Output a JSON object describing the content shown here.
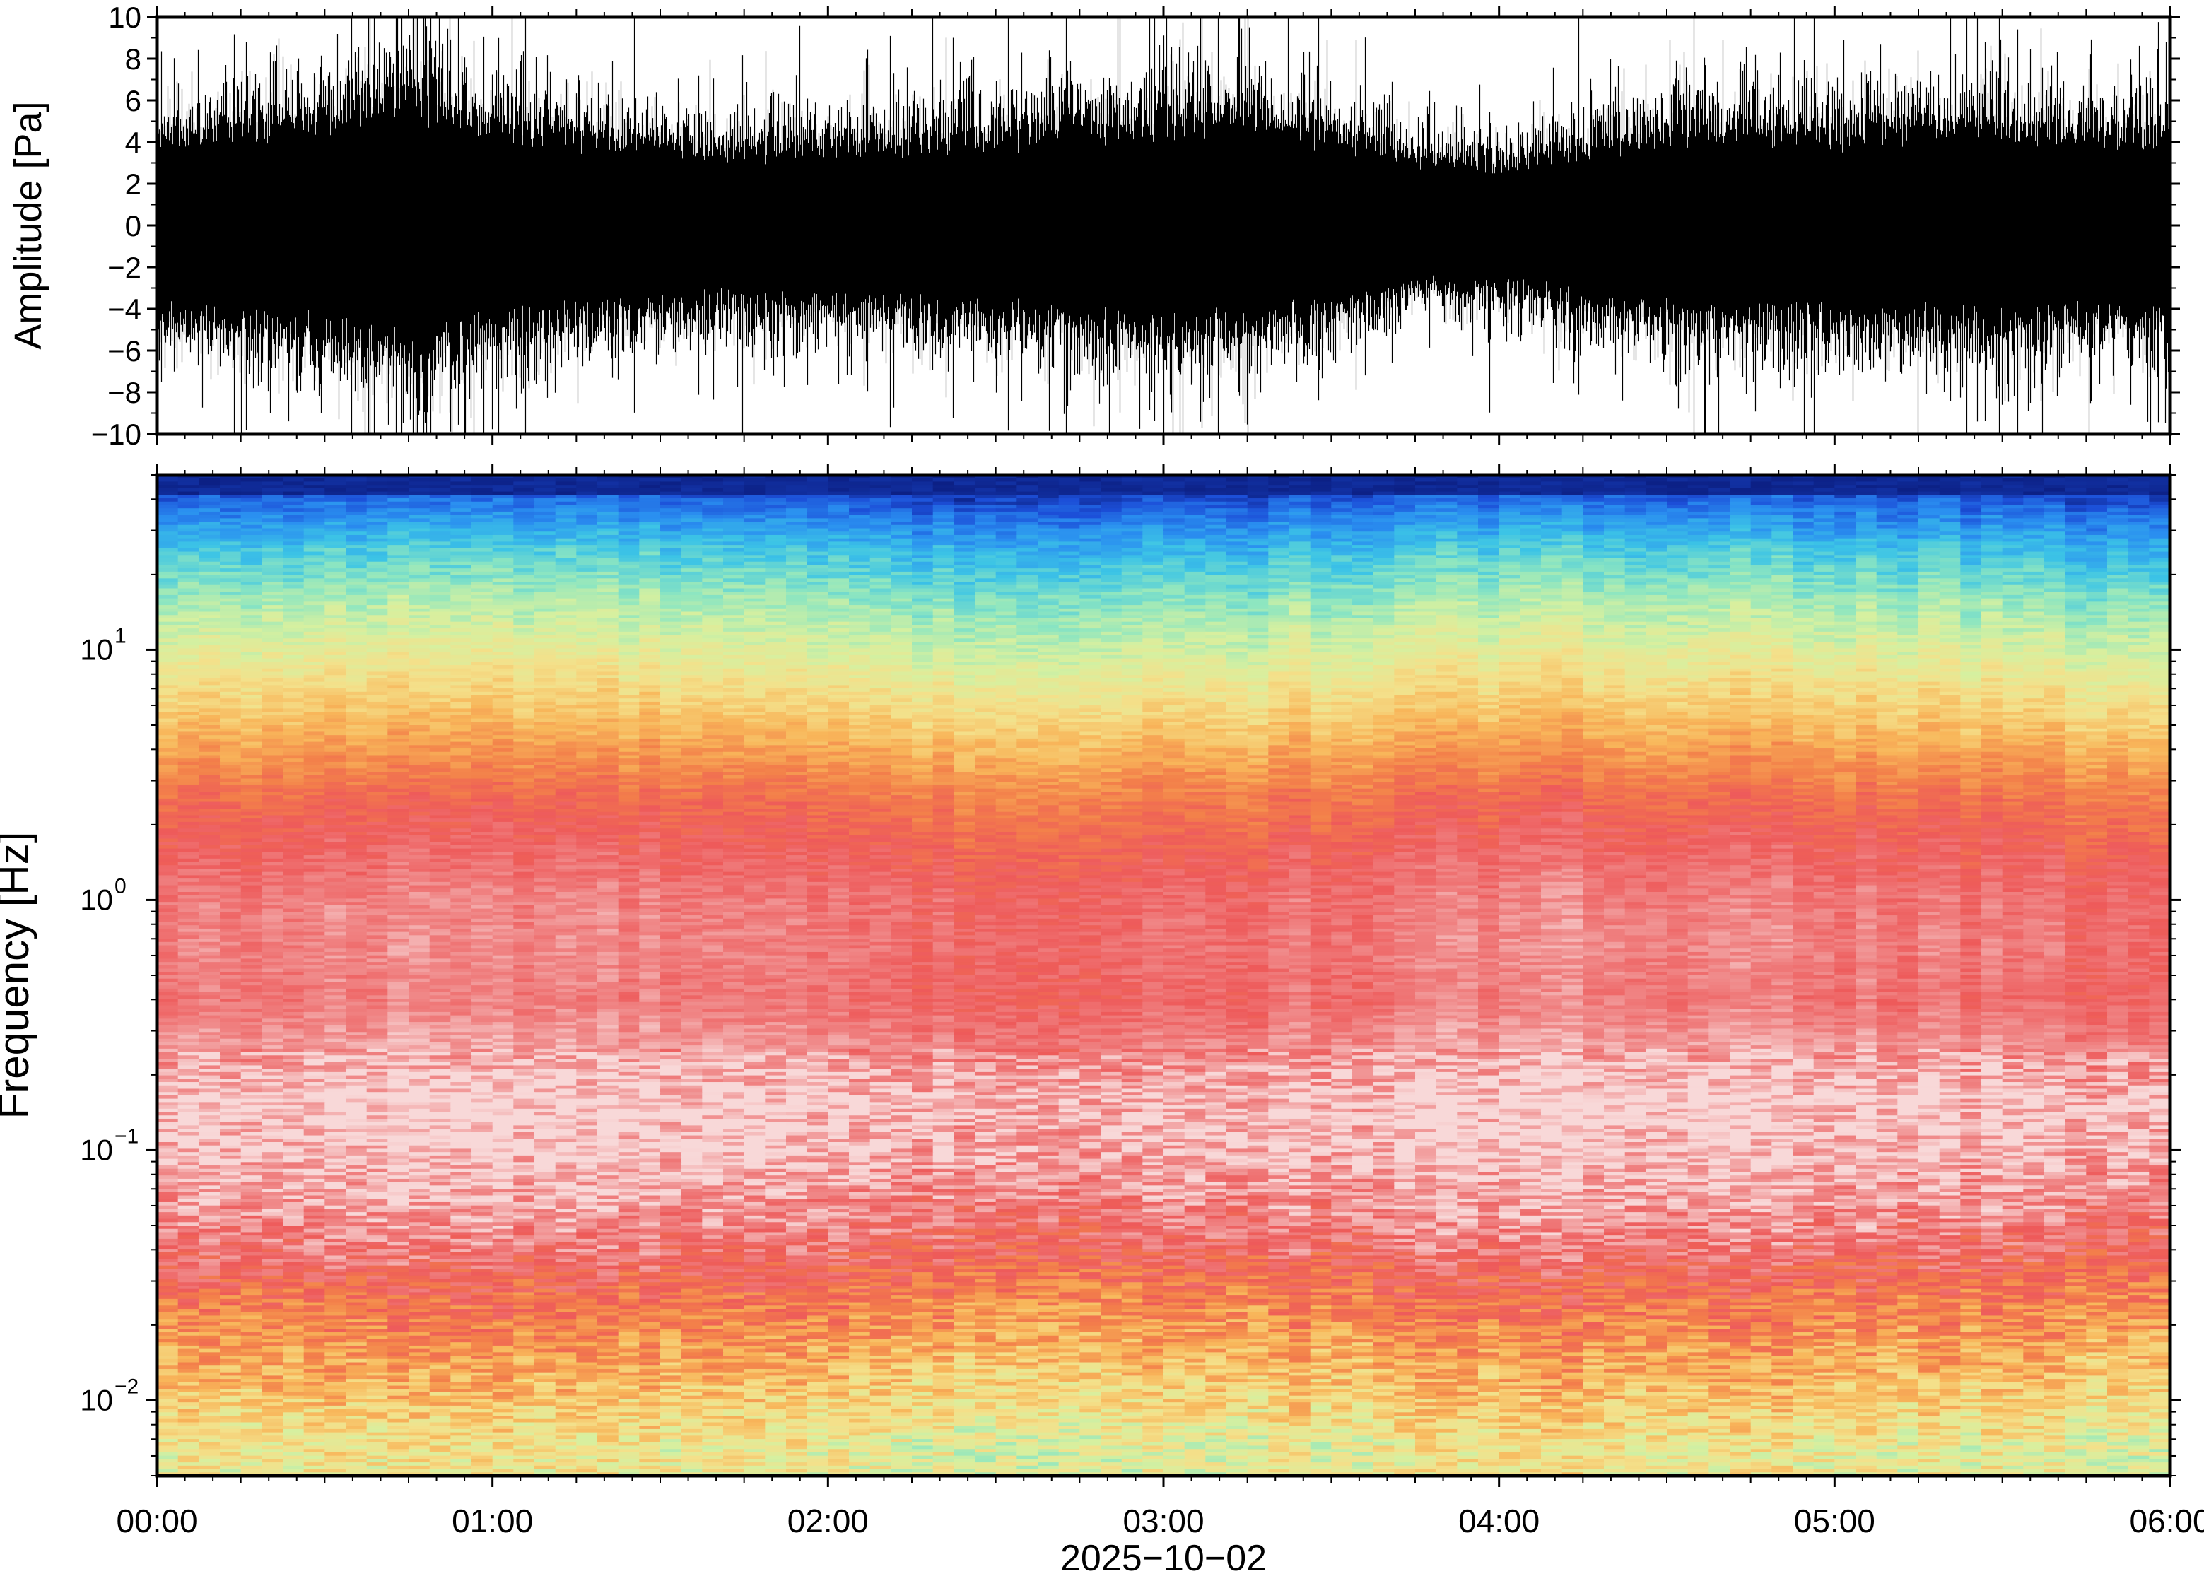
{
  "chart_data": [
    {
      "type": "line",
      "title": "",
      "ylabel": "Amplitude [Pa]",
      "xlabel": "",
      "ylim": [
        -10,
        10
      ],
      "yticks": [
        10,
        8,
        6,
        4,
        2,
        0,
        -2,
        -4,
        -6,
        -8,
        -10
      ],
      "ytick_labels": [
        "10",
        "8",
        "6",
        "4",
        "2",
        "0",
        "−2",
        "−4",
        "−6",
        "−8",
        "−10"
      ],
      "x_range": [
        "00:00",
        "06:00"
      ],
      "series": [
        {
          "color": "#000000",
          "envelope_hours": [
            0,
            0.25,
            0.5,
            0.75,
            1,
            1.25,
            1.5,
            1.75,
            2,
            2.25,
            2.5,
            2.75,
            3,
            3.25,
            3.5,
            3.75,
            4,
            4.25,
            4.5,
            4.75,
            5,
            5.25,
            5.5,
            5.75,
            6
          ],
          "envelope_max_pa": [
            4.5,
            5,
            5,
            6.5,
            5,
            4.5,
            4,
            3.8,
            4,
            4.2,
            4.5,
            4.8,
            5.2,
            5.5,
            4.5,
            3.5,
            3,
            3.8,
            4.5,
            4.5,
            4.5,
            4.8,
            5,
            4.5,
            4.5
          ],
          "envelope_min_pa": [
            -4.5,
            -5,
            -5,
            -6.5,
            -5,
            -4.5,
            -4,
            -3.8,
            -4,
            -4.2,
            -4.5,
            -4.8,
            -5.2,
            -5,
            -4.2,
            -3,
            -3.2,
            -3.8,
            -4.5,
            -4.5,
            -4.5,
            -4.8,
            -5,
            -4.5,
            -4.5
          ]
        }
      ]
    },
    {
      "type": "heatmap",
      "title": "",
      "ylabel": "Frequency [Hz]",
      "xlabel": "2025−10−02",
      "y_scale": "log",
      "ylim_hz": [
        0.005,
        50
      ],
      "yticks": [
        {
          "base": "10",
          "exp": "1",
          "value": 10
        },
        {
          "base": "10",
          "exp": "0",
          "value": 1
        },
        {
          "base": "10",
          "exp": "−1",
          "value": 0.1
        },
        {
          "base": "10",
          "exp": "−2",
          "value": 0.01
        }
      ],
      "xticks": [
        "00:00",
        "01:00",
        "02:00",
        "03:00",
        "04:00",
        "05:00",
        "06:00"
      ],
      "x_range_hours": [
        0,
        6
      ],
      "colormap_stops": [
        "#0a1a7a",
        "#1c4fd8",
        "#2a8ff0",
        "#3cc4e6",
        "#8ee6c0",
        "#d6f0a0",
        "#f4e08a",
        "#f8b65a",
        "#f3804a",
        "#ee5a5a",
        "#f08a8a",
        "#f8d8d8"
      ],
      "profile_log10_hz": [
        1.7,
        1.55,
        1.4,
        1.2,
        1.0,
        0.8,
        0.6,
        0.4,
        0.2,
        0.0,
        -0.2,
        -0.4,
        -0.6,
        -0.8,
        -1.0,
        -1.2,
        -1.4,
        -1.6,
        -1.8,
        -2.0,
        -2.2
      ],
      "profile_level": [
        0.02,
        0.15,
        0.27,
        0.38,
        0.47,
        0.56,
        0.66,
        0.76,
        0.82,
        0.87,
        0.88,
        0.86,
        0.92,
        0.99,
        0.97,
        0.92,
        0.85,
        0.74,
        0.66,
        0.58,
        0.5
      ]
    }
  ]
}
